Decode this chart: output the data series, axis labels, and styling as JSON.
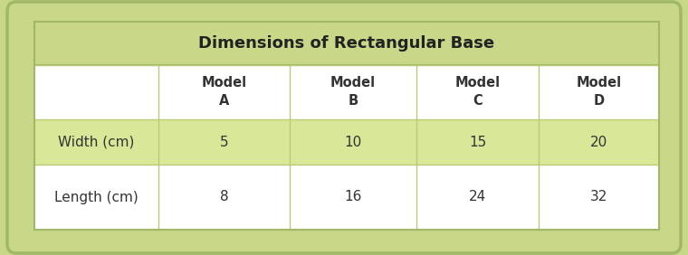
{
  "title": "Dimensions of Rectangular Base",
  "col_headers": [
    [
      "Model",
      "A"
    ],
    [
      "Model",
      "B"
    ],
    [
      "Model",
      "C"
    ],
    [
      "Model",
      "D"
    ]
  ],
  "row_labels": [
    "Width (cm)",
    "Length (cm)"
  ],
  "table_data": [
    [
      "5",
      "10",
      "15",
      "20"
    ],
    [
      "8",
      "16",
      "24",
      "32"
    ]
  ],
  "outer_bg": "#c8d888",
  "title_bg": "#c8d888",
  "header_row_bg": "#ffffff",
  "data_row1_bg": "#d8e898",
  "data_row2_bg": "#ffffff",
  "table_border_color": "#a0b868",
  "inner_line_color": "#b8cc78",
  "title_fontsize": 13,
  "header_fontsize": 10.5,
  "data_fontsize": 11,
  "label_fontsize": 11,
  "text_color": "#333333",
  "title_color": "#222222"
}
